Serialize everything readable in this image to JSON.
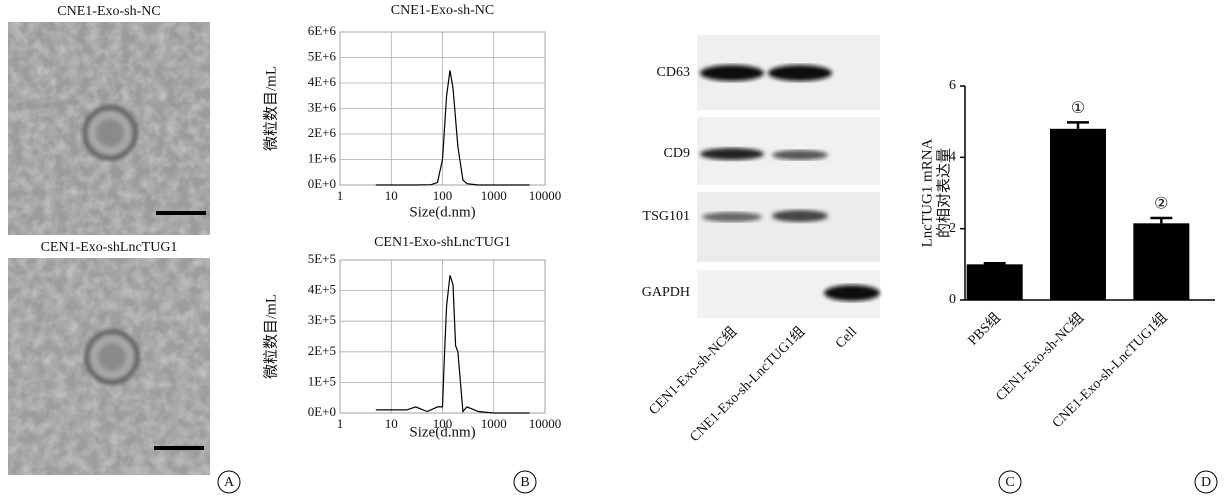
{
  "chart_data": [
    {
      "type": "line",
      "title": "CNE1-Exo-sh-NC",
      "x_label": "Size(d.nm)",
      "y_label": "微粒数目/mL",
      "log_x": true,
      "grid": true,
      "color": "#000000",
      "xlim": [
        1,
        10000
      ],
      "xticks": [
        1,
        10,
        100,
        1000,
        10000
      ],
      "ylim": [
        0,
        6000000
      ],
      "yticks": [
        {
          "value": 0,
          "label": "0E+0"
        },
        {
          "value": 1000000,
          "label": "1E+6"
        },
        {
          "value": 2000000,
          "label": "2E+6"
        },
        {
          "value": 3000000,
          "label": "3E+6"
        },
        {
          "value": 4000000,
          "label": "4E+6"
        },
        {
          "value": 5000000,
          "label": "5E+6"
        },
        {
          "value": 6000000,
          "label": "6E+6"
        }
      ],
      "x": [
        5,
        10,
        30,
        60,
        80,
        100,
        120,
        140,
        160,
        200,
        250,
        300,
        500,
        1000,
        5000
      ],
      "values": [
        0,
        0,
        0,
        10000,
        100000,
        1000000,
        3500000,
        4500000,
        3800000,
        1500000,
        200000,
        50000,
        0,
        0,
        0
      ]
    },
    {
      "type": "line",
      "title": "CEN1-Exo-shLncTUG1",
      "x_label": "Size(d.nm)",
      "y_label": "微粒数目/mL",
      "log_x": true,
      "grid": true,
      "color": "#000000",
      "xlim": [
        1,
        10000
      ],
      "xticks": [
        1,
        10,
        100,
        1000,
        10000
      ],
      "ylim": [
        0,
        500000
      ],
      "yticks": [
        {
          "value": 0,
          "label": "0E+0"
        },
        {
          "value": 100000,
          "label": "1E+5"
        },
        {
          "value": 200000,
          "label": "2E+5"
        },
        {
          "value": 300000,
          "label": "3E+5"
        },
        {
          "value": 400000,
          "label": "4E+5"
        },
        {
          "value": 500000,
          "label": "5E+5"
        }
      ],
      "x": [
        5,
        20,
        30,
        50,
        80,
        100,
        110,
        120,
        140,
        160,
        180,
        200,
        250,
        300,
        500,
        1000,
        5000
      ],
      "values": [
        10000,
        10000,
        20000,
        5000,
        20000,
        20000,
        200000,
        350000,
        450000,
        420000,
        220000,
        200000,
        5000,
        20000,
        5000,
        0,
        0
      ]
    },
    {
      "type": "bar",
      "y_label": [
        "LncTUG1 mRNA",
        "的相对表达量"
      ],
      "color": "#000000",
      "categories": [
        "PBS组",
        "CEN1-Exo-sh-NC组",
        "CNE1-Exo-sh-LncTUG1组"
      ],
      "values": [
        1,
        4.8,
        2.15
      ],
      "errors": [
        0.03,
        0.18,
        0.15
      ],
      "annotations": [
        null,
        "①",
        "②"
      ],
      "ylim": [
        0,
        6
      ],
      "yticks": [
        0,
        2,
        4,
        6
      ]
    }
  ],
  "micrographs": [
    "CNE1-Exo-sh-NC",
    "CEN1-Exo-shLncTUG1"
  ],
  "blot": {
    "rows": [
      "CD63",
      "CD9",
      "TSG101",
      "GAPDH"
    ],
    "lanes": [
      "CEN1-Exo-sh-NC组",
      "CNE1-Exo-sh-LncTUG1组",
      "Cell"
    ]
  },
  "panel_letters": [
    "A",
    "B",
    "C",
    "D"
  ]
}
